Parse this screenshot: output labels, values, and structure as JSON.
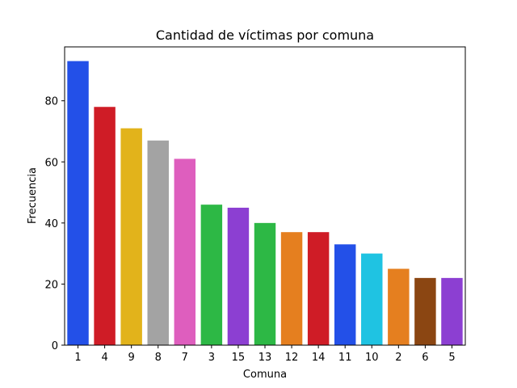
{
  "chart_data": {
    "type": "bar",
    "title": "Cantidad de víctimas por comuna",
    "xlabel": "Comuna",
    "ylabel": "Frecuencia",
    "categories": [
      "1",
      "4",
      "9",
      "8",
      "7",
      "3",
      "15",
      "13",
      "12",
      "14",
      "11",
      "10",
      "2",
      "6",
      "5"
    ],
    "values": [
      93,
      78,
      71,
      67,
      61,
      46,
      45,
      40,
      37,
      37,
      33,
      30,
      25,
      22,
      22
    ],
    "colors": [
      "#2350e8",
      "#cf1c26",
      "#e2b31b",
      "#a3a3a3",
      "#de5ebe",
      "#2db845",
      "#8c3fd2",
      "#2db845",
      "#e57f1f",
      "#cf1c26",
      "#2350e8",
      "#1fc3e2",
      "#e57f1f",
      "#8b4612",
      "#8c3fd2"
    ],
    "yticks": [
      0,
      20,
      40,
      60,
      80
    ],
    "ylim": [
      0,
      97.65
    ],
    "grid": false,
    "legend": false
  }
}
